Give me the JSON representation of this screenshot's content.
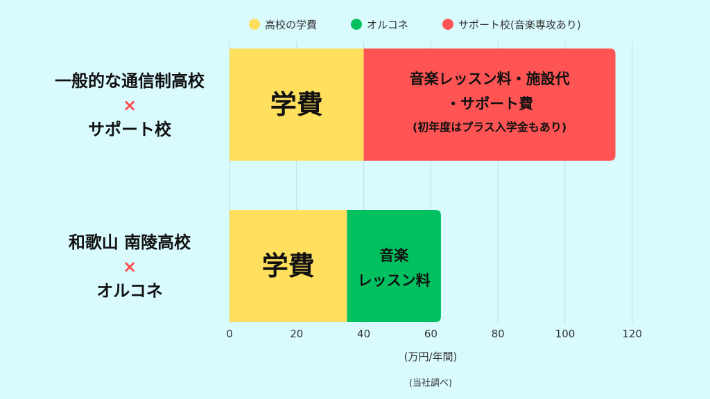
{
  "chart_data": {
    "type": "bar",
    "orientation": "horizontal",
    "stacked": true,
    "categories": [
      {
        "lines": [
          "一般的な通信制高校",
          "×",
          "サポート校"
        ]
      },
      {
        "lines": [
          "和歌山 南陵高校",
          "×",
          "オルコネ"
        ]
      }
    ],
    "series": [
      {
        "name": "高校の学費",
        "color": "#ffdf5e",
        "values": [
          40,
          35
        ],
        "segment_labels": [
          [
            "学費"
          ],
          [
            "学費"
          ]
        ]
      },
      {
        "name": "オルコネ",
        "color": "#00c060",
        "values": [
          0,
          28
        ],
        "segment_labels": [
          [],
          [
            "音楽",
            "レッスン料"
          ]
        ]
      },
      {
        "name": "サポート校(音楽専攻あり)",
        "color": "#ff5454",
        "values": [
          75,
          0
        ],
        "segment_labels": [
          [
            "音楽レッスン料・施設代",
            "・サポート費",
            "(初年度はプラス入学金もあり)"
          ],
          []
        ]
      }
    ],
    "x_ticks": [
      0,
      20,
      40,
      60,
      80,
      100,
      120
    ],
    "xlim": [
      0,
      125
    ],
    "xlabel": "(万円/年間)",
    "source": "(当社調べ)",
    "grid": true,
    "legend_position": "top"
  }
}
